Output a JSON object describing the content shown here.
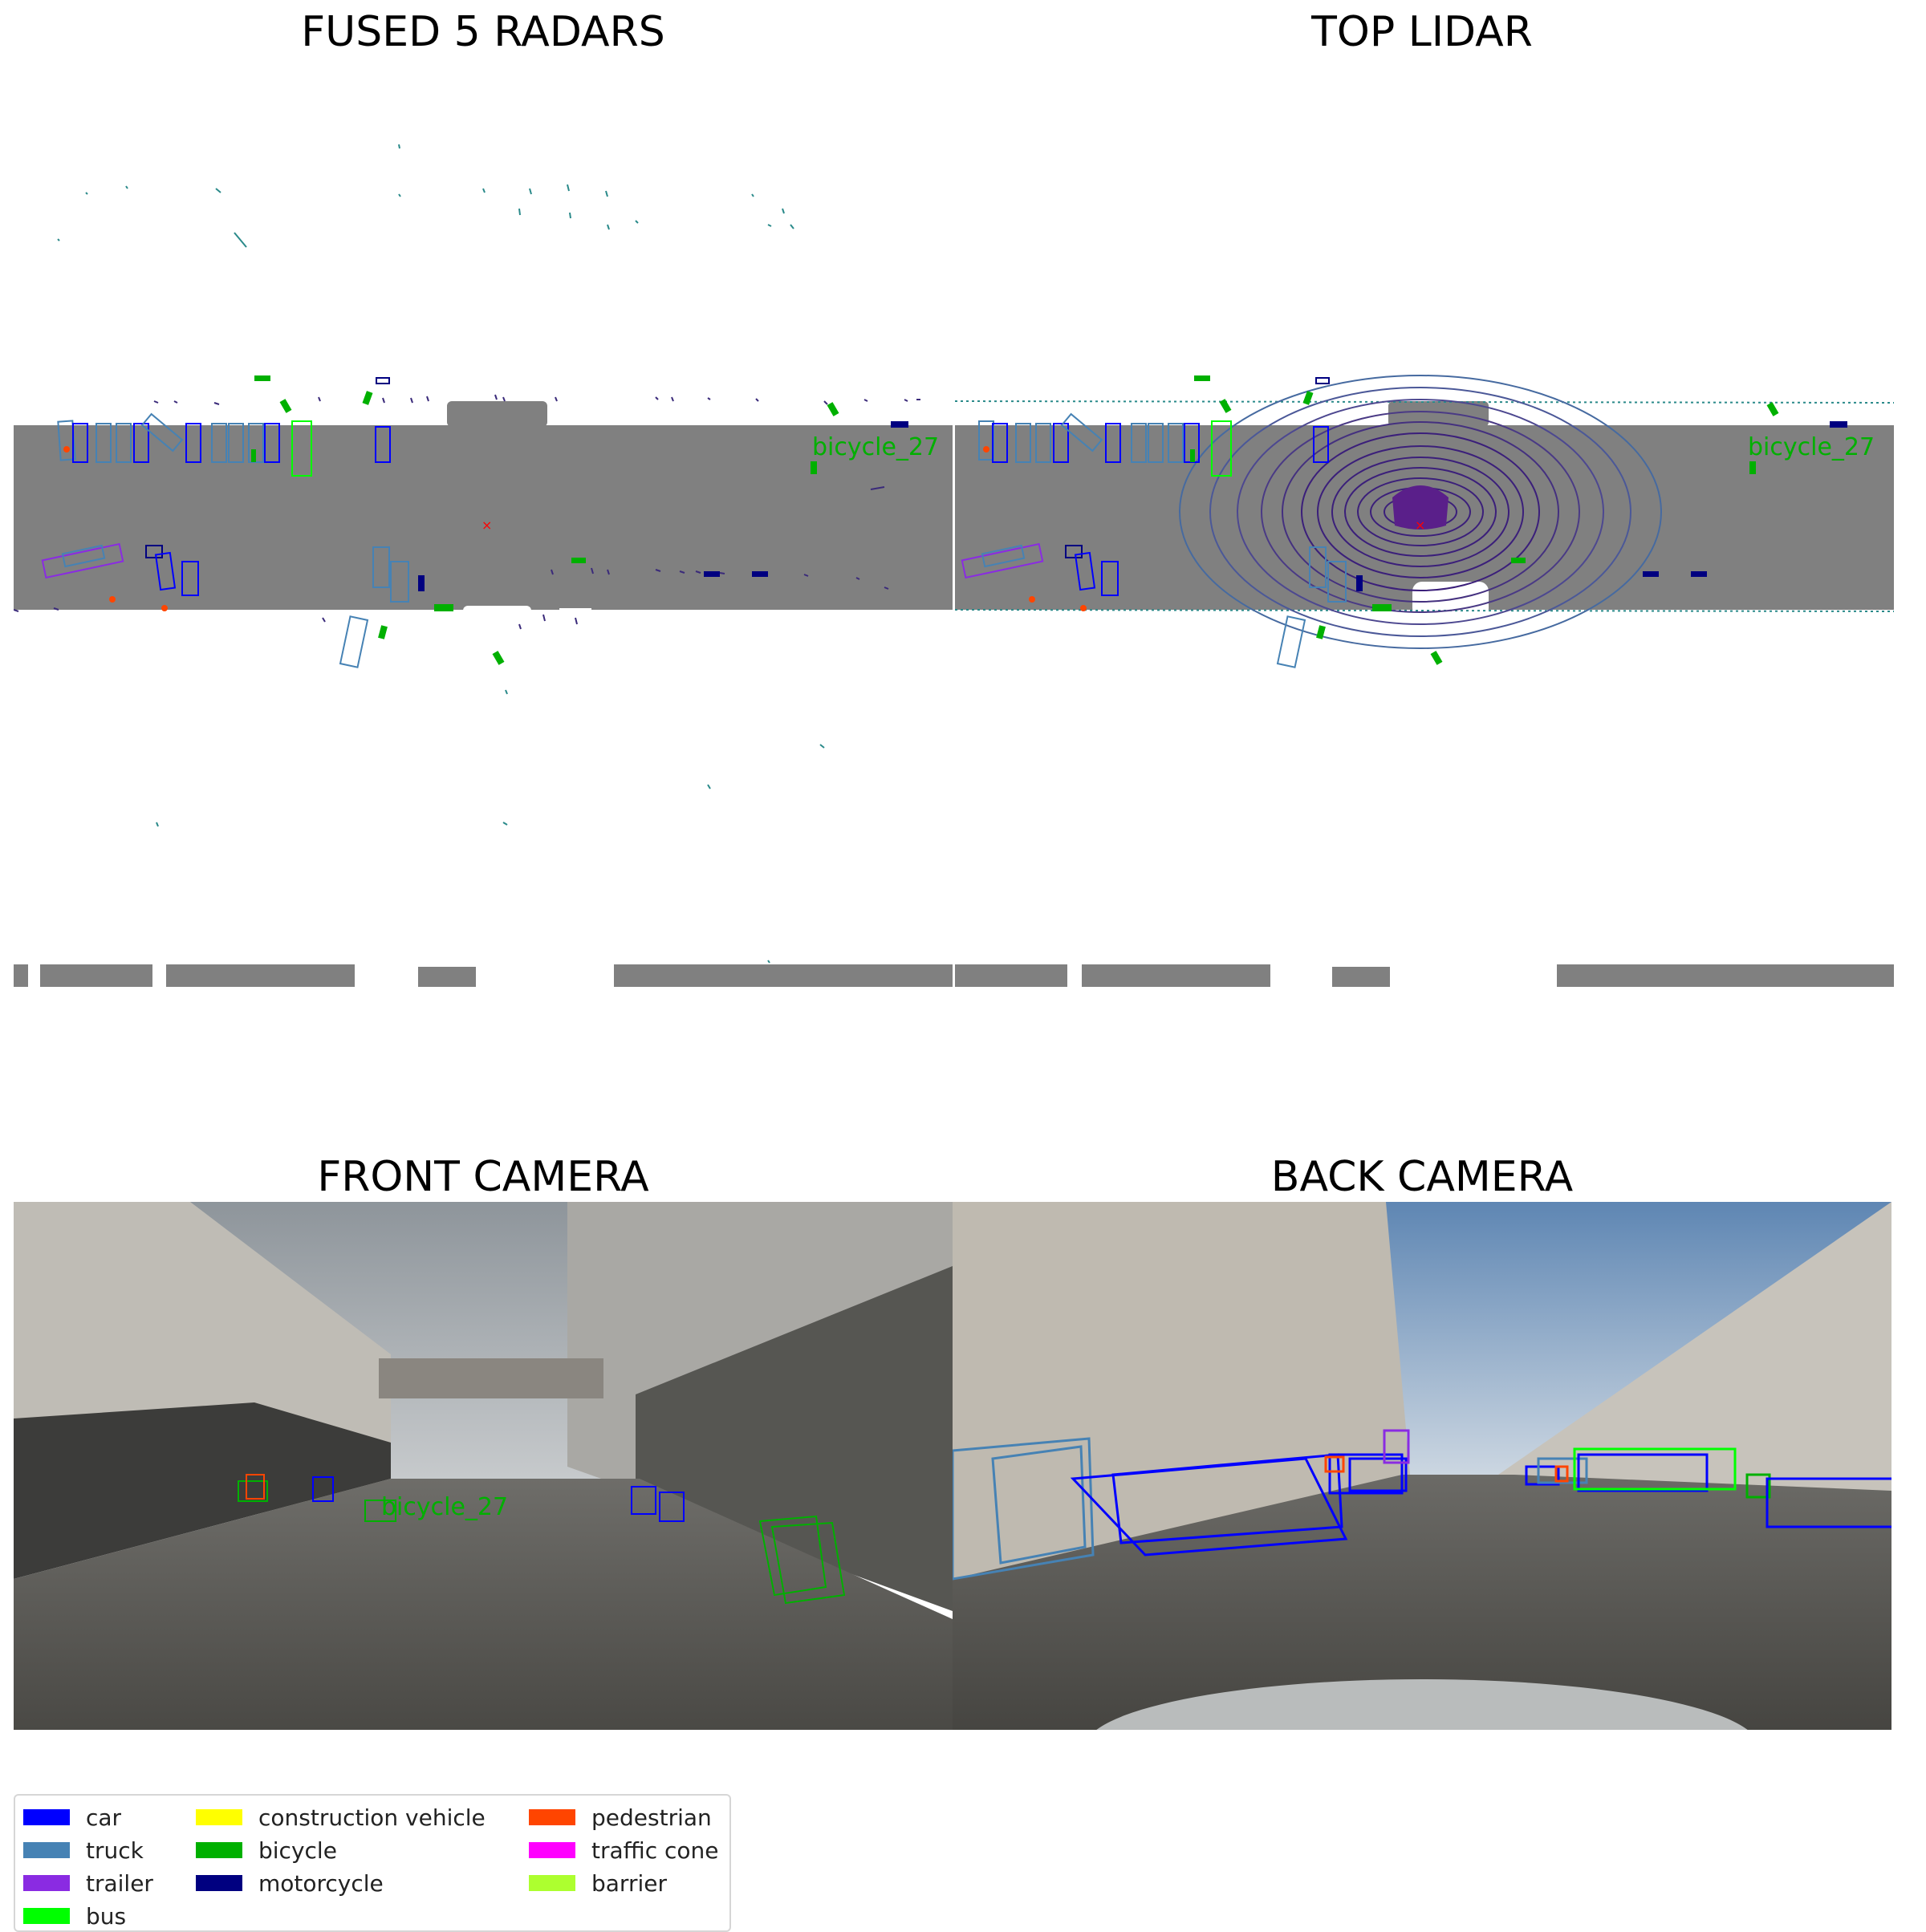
{
  "panels": {
    "radar_title": "FUSED 5 RADARS",
    "lidar_title": "TOP LIDAR",
    "front_title": "FRONT CAMERA",
    "back_title": "BACK CAMERA"
  },
  "annotations": {
    "radar_label": "bicycle_27",
    "lidar_label": "bicycle_27",
    "front_label": "bicycle_27"
  },
  "legend": [
    {
      "label": "car",
      "color": "#0000ff"
    },
    {
      "label": "truck",
      "color": "#4682b4"
    },
    {
      "label": "trailer",
      "color": "#8a2be2"
    },
    {
      "label": "bus",
      "color": "#00ff00"
    },
    {
      "label": "construction vehicle",
      "color": "#ffff00"
    },
    {
      "label": "bicycle",
      "color": "#00b000"
    },
    {
      "label": "motorcycle",
      "color": "#000080"
    },
    {
      "label": "pedestrian",
      "color": "#ff4500"
    },
    {
      "label": "traffic cone",
      "color": "#ff00ff"
    },
    {
      "label": "barrier",
      "color": "#adff2f"
    }
  ],
  "colors": {
    "road": "#808080",
    "background": "#ffffff",
    "ego_marker": "#ff0000",
    "lidar_rings": "#3b1f7a"
  }
}
